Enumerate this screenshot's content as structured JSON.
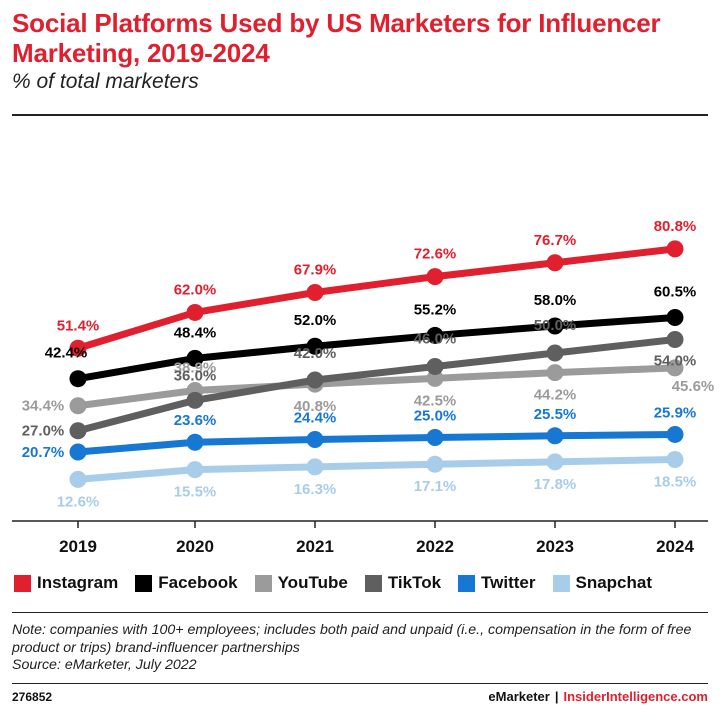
{
  "header": {
    "title": "Social Platforms Used by US Marketers for Influencer Marketing, 2019-2024",
    "subtitle": "% of total marketers"
  },
  "chart_data": {
    "type": "line",
    "title": "Social Platforms Used by US Marketers for Influencer Marketing, 2019-2024",
    "subtitle": "% of total marketers",
    "x": [
      "2019",
      "2020",
      "2021",
      "2022",
      "2023",
      "2024"
    ],
    "ylim": [
      0,
      90
    ],
    "grid": false,
    "legend_position": "bottom",
    "series": [
      {
        "name": "Instagram",
        "color": "#e0202e",
        "values": [
          51.4,
          62.0,
          67.9,
          72.6,
          76.7,
          80.8
        ],
        "labels": [
          "51.4%",
          "62.0%",
          "67.9%",
          "72.6%",
          "76.7%",
          "80.8%"
        ]
      },
      {
        "name": "Facebook",
        "color": "#000000",
        "values": [
          42.4,
          48.4,
          52.0,
          55.2,
          58.0,
          60.5
        ],
        "labels": [
          "42.4%",
          "48.4%",
          "52.0%",
          "55.2%",
          "58.0%",
          "60.5%"
        ]
      },
      {
        "name": "YouTube",
        "color": "#9b9b9b",
        "values": [
          34.4,
          38.9,
          40.8,
          42.5,
          44.2,
          45.6
        ],
        "labels": [
          "34.4%",
          "38.9%",
          "40.8%",
          "42.5%",
          "44.2%",
          "45.6%"
        ]
      },
      {
        "name": "TikTok",
        "color": "#5f5f5f",
        "values": [
          27.0,
          36.0,
          42.0,
          46.0,
          50.0,
          54.0
        ],
        "labels": [
          "27.0%",
          "36.0%",
          "42.0%",
          "46.0%",
          "50.0%",
          "54.0%"
        ]
      },
      {
        "name": "Twitter",
        "color": "#1678d2",
        "values": [
          20.7,
          23.6,
          24.4,
          25.0,
          25.5,
          25.9
        ],
        "labels": [
          "20.7%",
          "23.6%",
          "24.4%",
          "25.0%",
          "25.5%",
          "25.9%"
        ]
      },
      {
        "name": "Snapchat",
        "color": "#a8cdea",
        "values": [
          12.6,
          15.5,
          16.3,
          17.1,
          17.8,
          18.5
        ],
        "labels": [
          "12.6%",
          "15.5%",
          "16.3%",
          "17.1%",
          "17.8%",
          "18.5%"
        ]
      }
    ]
  },
  "legend": [
    {
      "label": "Instagram",
      "color": "#e0202e"
    },
    {
      "label": "Facebook",
      "color": "#000000"
    },
    {
      "label": "YouTube",
      "color": "#9b9b9b"
    },
    {
      "label": "TikTok",
      "color": "#5f5f5f"
    },
    {
      "label": "Twitter",
      "color": "#1678d2"
    },
    {
      "label": "Snapchat",
      "color": "#a8cdea"
    }
  ],
  "note": "Note: companies with 100+ employees; includes both paid and unpaid (i.e., compensation in the form of free product or trips) brand-influencer partnerships",
  "source": "Source: eMarketer, July 2022",
  "footer": {
    "id": "276852",
    "brand_left": "eMarketer",
    "separator": "|",
    "brand_right": "InsiderIntelligence.com"
  }
}
